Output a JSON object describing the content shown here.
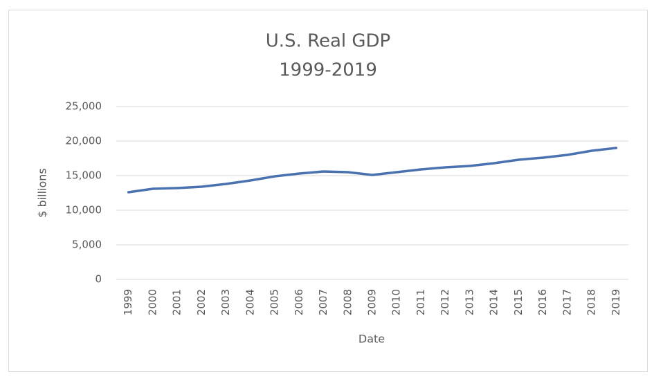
{
  "chart_data": {
    "type": "line",
    "title": "U.S. Real GDP",
    "subtitle": "1999-2019",
    "y_label": "$ billions",
    "x_label": "Date",
    "categories": [
      "1999",
      "2000",
      "2001",
      "2002",
      "2003",
      "2004",
      "2005",
      "2006",
      "2007",
      "2008",
      "2009",
      "2010",
      "2011",
      "2012",
      "2013",
      "2014",
      "2015",
      "2016",
      "2017",
      "2018",
      "2019"
    ],
    "values": [
      12600,
      13100,
      13200,
      13400,
      13800,
      14300,
      14900,
      15300,
      15600,
      15500,
      15100,
      15500,
      15900,
      16200,
      16400,
      16800,
      17300,
      17600,
      18000,
      18600,
      19000
    ],
    "color": "#4a72b0",
    "ylim": [
      0,
      25000
    ],
    "yticks": [
      0,
      {
        "value": 5000,
        "label": "5,000"
      },
      {
        "value": 10000,
        "label": "10,000"
      },
      {
        "value": 15000,
        "label": "15,000"
      },
      {
        "value": 20000,
        "label": "20,000"
      },
      {
        "value": 25000,
        "label": "25,000"
      }
    ],
    "grid": true
  }
}
